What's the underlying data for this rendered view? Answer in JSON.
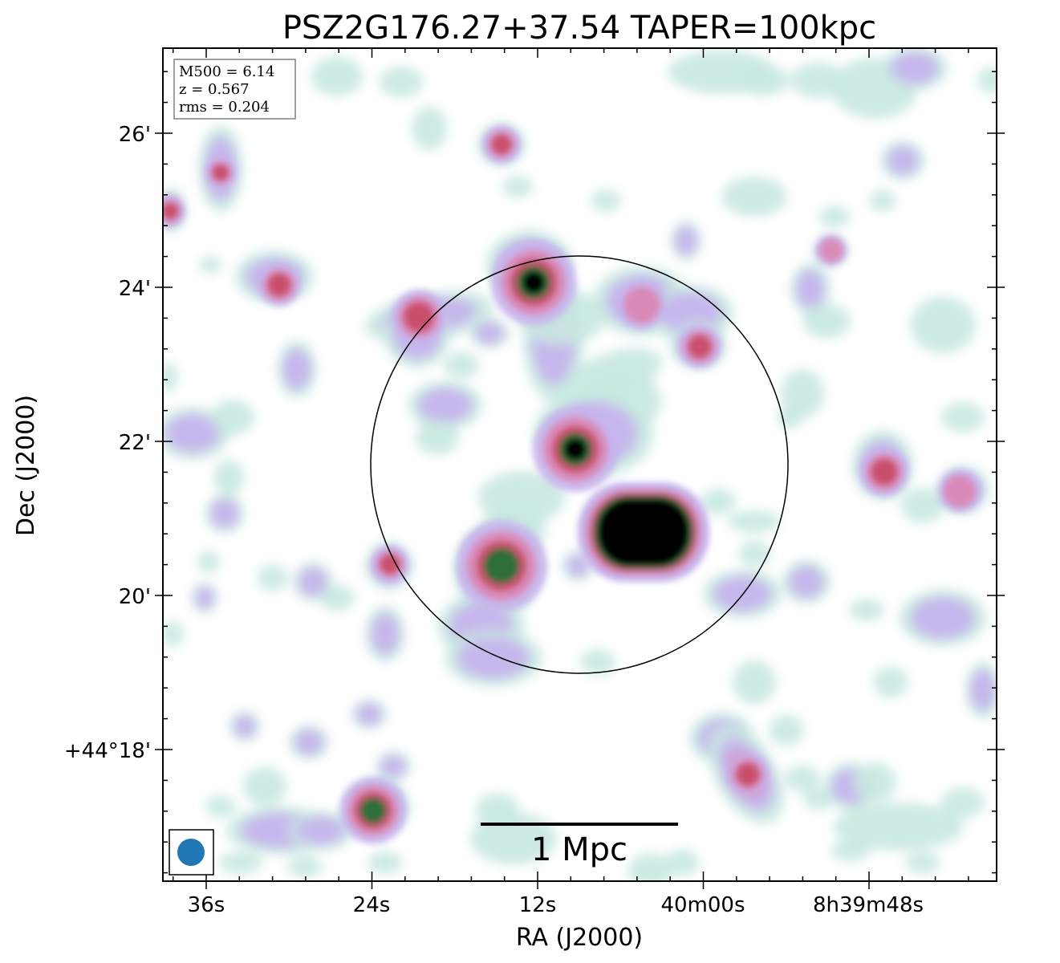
{
  "title": "PSZ2G176.27+37.54 TAPER=100kpc",
  "xlabel": "RA (J2000)",
  "ylabel": "Dec (J2000)",
  "x_ticks": [
    "36s",
    "24s",
    "12s",
    "40m00s",
    "8h39m48s"
  ],
  "y_ticks": [
    "26'",
    "24'",
    "22'",
    "20'",
    "+44°18'"
  ],
  "info_box": {
    "line1": "M500 = 6.14",
    "line2": "z = 0.567",
    "line3": "rms = 0.204"
  },
  "scalebar_label": "1 Mpc",
  "colors": {
    "beam": "#1f77b4",
    "faint": "#c8e8e0",
    "lavender": "#c6b4ec",
    "pink": "#d98ab8",
    "red": "#c94f6d",
    "green": "#2e6e3a",
    "core": "#000000"
  }
}
